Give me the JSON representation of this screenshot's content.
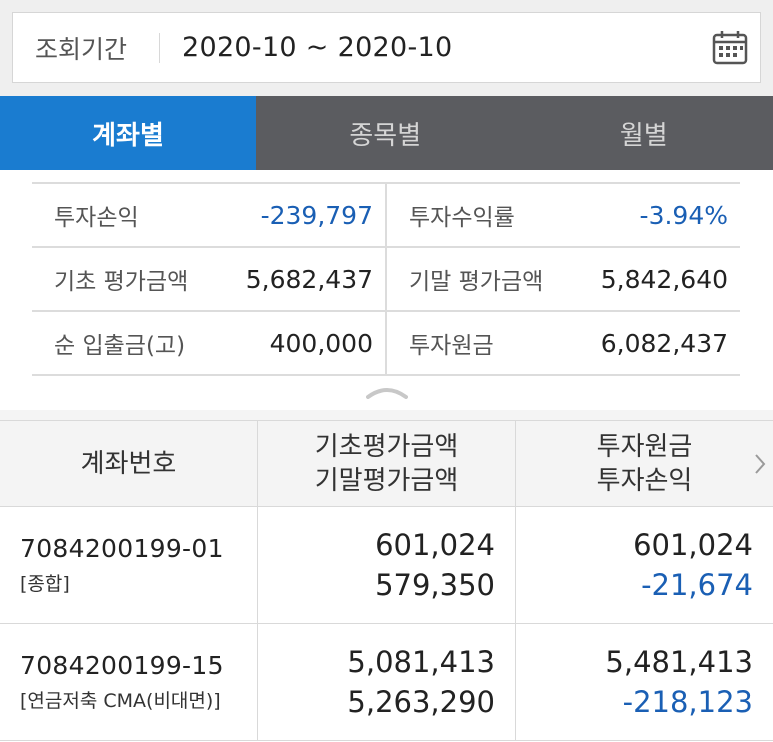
{
  "period": {
    "label": "조회기간",
    "range": "2020-10 ~ 2020-10",
    "calendar_icon": "calendar-icon"
  },
  "tabs": [
    {
      "label": "계좌별",
      "active": true
    },
    {
      "label": "종목별",
      "active": false
    },
    {
      "label": "월별",
      "active": false
    }
  ],
  "summary": {
    "rows": [
      [
        {
          "key": "투자손익",
          "value": "-239,797",
          "negative": true
        },
        {
          "key": "투자수익률",
          "value": "-3.94%",
          "negative": true
        }
      ],
      [
        {
          "key": "기초 평가금액",
          "value": "5,682,437",
          "negative": false
        },
        {
          "key": "기말 평가금액",
          "value": "5,842,640",
          "negative": false
        }
      ],
      [
        {
          "key": "순 입출금(고)",
          "value": "400,000",
          "negative": false
        },
        {
          "key": "투자원금",
          "value": "6,082,437",
          "negative": false
        }
      ]
    ]
  },
  "table": {
    "headers": {
      "col1": "계좌번호",
      "col2_line1": "기초평가금액",
      "col2_line2": "기말평가금액",
      "col3_line1": "투자원금",
      "col3_line2": "투자손익"
    },
    "rows": [
      {
        "account_no": "7084200199-01",
        "account_type": "[종합]",
        "base_value": "601,024",
        "end_value": "579,350",
        "principal": "601,024",
        "profit": "-21,674"
      },
      {
        "account_no": "7084200199-15",
        "account_type": "[연금저축 CMA(비대면)]",
        "base_value": "5,081,413",
        "end_value": "5,263,290",
        "principal": "5,481,413",
        "profit": "-218,123"
      }
    ]
  },
  "colors": {
    "accent": "#1a7cd0",
    "negative": "#1a5fb4",
    "tab_bg": "#5b5c60"
  }
}
